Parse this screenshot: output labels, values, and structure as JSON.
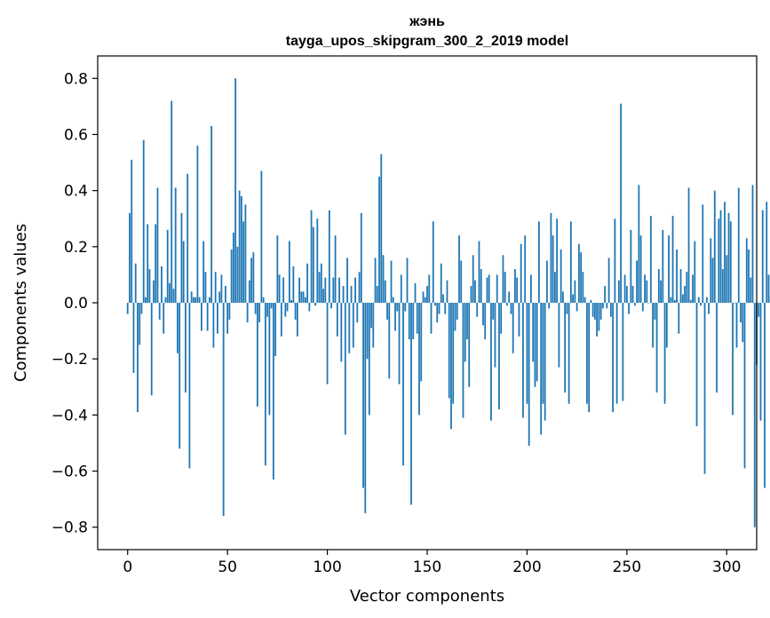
{
  "chart_data": {
    "type": "bar",
    "title_line1": "жэнь",
    "title_line2": "tayga_upos_skipgram_300_2_2019 model",
    "xlabel": "Vector components",
    "ylabel": "Components values",
    "xlim": [
      -15,
      315
    ],
    "ylim": [
      -0.88,
      0.88
    ],
    "xticks": [
      0,
      50,
      100,
      150,
      200,
      250,
      300
    ],
    "xtick_labels": [
      "0",
      "50",
      "100",
      "150",
      "200",
      "250",
      "300"
    ],
    "yticks": [
      -0.8,
      -0.6,
      -0.4,
      -0.2,
      0.0,
      0.2,
      0.4,
      0.6,
      0.8
    ],
    "ytick_labels": [
      "−0.8",
      "−0.6",
      "−0.4",
      "−0.2",
      "0.0",
      "0.2",
      "0.4",
      "0.6",
      "0.8"
    ],
    "bar_color": "#1f77b4",
    "grid": false,
    "values": [
      -0.04,
      0.32,
      0.51,
      -0.25,
      0.14,
      -0.39,
      -0.15,
      -0.04,
      0.58,
      0.02,
      0.28,
      0.12,
      -0.33,
      0.08,
      0.28,
      0.41,
      -0.06,
      0.13,
      -0.11,
      0.02,
      0.26,
      0.07,
      0.72,
      0.05,
      0.41,
      -0.18,
      -0.52,
      0.32,
      0.22,
      -0.32,
      0.46,
      -0.59,
      0.04,
      0.02,
      0.02,
      0.56,
      0.02,
      -0.1,
      0.22,
      0.11,
      -0.1,
      0.02,
      0.63,
      -0.16,
      0.11,
      -0.11,
      0.04,
      0.1,
      -0.76,
      0.06,
      -0.11,
      -0.06,
      0.19,
      0.25,
      0.8,
      0.2,
      0.4,
      0.38,
      0.29,
      0.35,
      -0.07,
      0.08,
      0.16,
      0.18,
      -0.04,
      -0.37,
      -0.07,
      0.47,
      0.02,
      -0.58,
      -0.05,
      -0.4,
      -0.02,
      -0.63,
      -0.19,
      0.24,
      0.1,
      -0.12,
      0.09,
      -0.05,
      -0.03,
      0.22,
      0.01,
      0.13,
      -0.06,
      -0.12,
      0.09,
      0.04,
      0.04,
      0.02,
      0.14,
      -0.03,
      0.33,
      0.27,
      -0.01,
      0.3,
      0.11,
      0.14,
      0.05,
      0.09,
      -0.29,
      0.33,
      -0.02,
      0.09,
      0.24,
      -0.12,
      0.09,
      -0.21,
      0.06,
      -0.47,
      0.16,
      -0.18,
      0.06,
      -0.16,
      0.09,
      -0.07,
      0.11,
      0.32,
      -0.66,
      -0.75,
      -0.2,
      -0.4,
      -0.09,
      -0.16,
      0.16,
      0.06,
      0.45,
      0.53,
      0.17,
      0.08,
      -0.06,
      -0.27,
      0.15,
      0.02,
      -0.1,
      -0.03,
      -0.29,
      0.1,
      -0.58,
      -0.03,
      0.16,
      -0.13,
      -0.72,
      -0.13,
      0.07,
      -0.11,
      -0.4,
      -0.28,
      0.04,
      0.02,
      0.06,
      0.1,
      -0.11,
      0.29,
      -0.01,
      -0.07,
      -0.04,
      0.14,
      0.03,
      -0.04,
      0.08,
      -0.34,
      -0.45,
      -0.36,
      -0.1,
      -0.06,
      0.24,
      0.15,
      -0.41,
      -0.21,
      -0.13,
      -0.3,
      0.06,
      0.17,
      0.08,
      -0.05,
      0.22,
      0.12,
      -0.08,
      -0.13,
      0.09,
      0.1,
      -0.42,
      -0.06,
      -0.23,
      0.1,
      -0.38,
      -0.11,
      0.17,
      0.11,
      -0.01,
      0.04,
      -0.04,
      -0.18,
      0.12,
      0.09,
      -0.12,
      0.21,
      -0.41,
      0.24,
      -0.36,
      -0.51,
      0.1,
      -0.21,
      -0.3,
      -0.28,
      0.29,
      -0.47,
      -0.36,
      -0.42,
      0.15,
      -0.02,
      0.32,
      0.24,
      0.11,
      0.3,
      -0.23,
      0.19,
      0.04,
      -0.32,
      -0.04,
      -0.36,
      0.29,
      0.03,
      0.08,
      -0.03,
      0.21,
      0.18,
      0.11,
      0.02,
      -0.36,
      -0.39,
      0.01,
      -0.05,
      -0.06,
      -0.12,
      -0.1,
      -0.06,
      -0.02,
      0.06,
      -0.02,
      0.16,
      -0.05,
      -0.39,
      0.3,
      -0.36,
      0.08,
      0.71,
      -0.35,
      0.1,
      0.06,
      -0.04,
      0.26,
      0.06,
      -0.01,
      0.15,
      0.42,
      0.24,
      -0.03,
      0.1,
      0.08,
      0.0,
      0.31,
      -0.16,
      -0.06,
      -0.32,
      0.12,
      0.08,
      0.26,
      -0.36,
      -0.16,
      0.24,
      0.02,
      0.31,
      0.01,
      0.19,
      -0.11,
      0.12,
      0.03,
      0.06,
      0.11,
      0.41,
      0.01,
      0.1,
      0.22,
      -0.44,
      0.02,
      -0.01,
      0.35,
      -0.61,
      0.02,
      -0.04,
      0.23,
      0.16,
      0.4,
      -0.32,
      0.3,
      0.33,
      0.12,
      0.36,
      0.17,
      0.32,
      0.29,
      -0.4,
      0.0,
      -0.16,
      0.41,
      -0.07,
      -0.14,
      -0.59,
      0.23,
      0.19,
      0.09,
      0.42,
      -0.8,
      -0.22,
      -0.05,
      -0.42,
      0.33,
      -0.66,
      0.36,
      0.1,
      0.02
    ]
  }
}
